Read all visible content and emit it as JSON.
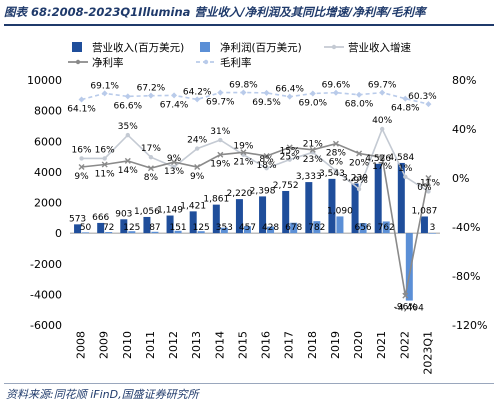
{
  "header": {
    "title": "图表 68:2008-2023Q1Illumina 营业收入/净利润及其同比增速/净利率/毛利率"
  },
  "footer": {
    "source": "资料来源:同花顺 iFinD,国盛证券研究所"
  },
  "colors": {
    "revenue": "#1f4e9b",
    "net_profit": "#5b8fd6",
    "revenue_growth": "#c4cad3",
    "net_margin": "#8a8a8a",
    "gross_margin": "#b9cbea",
    "title": "#1f3a6b"
  },
  "chart_data": {
    "type": "bar",
    "categories": [
      "2008",
      "2009",
      "2010",
      "2011",
      "2012",
      "2013",
      "2014",
      "2015",
      "2016",
      "2017",
      "2018",
      "2019",
      "2020",
      "2021",
      "2022",
      "2023Q1"
    ],
    "series": [
      {
        "name": "营业收入(百万美元)",
        "kind": "bar",
        "axis": "left",
        "values": [
          573,
          666,
          903,
          1056,
          1149,
          1421,
          1861,
          2220,
          2398,
          2752,
          3333,
          3543,
          3239,
          4526,
          4584,
          1087
        ],
        "labels": [
          "573",
          "666",
          "903",
          "1,056",
          "1,149",
          "1,421",
          "1,861",
          "2,220",
          "2,398",
          "2,752",
          "3,333",
          "3,543",
          "3,239",
          "4,526",
          "4,584",
          "1,087"
        ]
      },
      {
        "name": "净利润(百万美元)",
        "kind": "bar",
        "axis": "left",
        "values": [
          50,
          72,
          125,
          87,
          151,
          125,
          353,
          457,
          428,
          678,
          782,
          1090,
          656,
          762,
          -4404,
          3
        ],
        "labels": [
          "50",
          "72",
          "125",
          "87",
          "151",
          "125",
          "353",
          "457",
          "428",
          "678",
          "782",
          "1,090",
          "656",
          "762",
          "-4,404",
          "3"
        ]
      },
      {
        "name": "营业收入增速",
        "kind": "line",
        "axis": "right",
        "values": [
          0.16,
          0.16,
          0.35,
          0.17,
          0.09,
          0.24,
          0.31,
          0.19,
          0.08,
          0.15,
          0.21,
          0.06,
          -0.09,
          0.4,
          0.01,
          -0.11
        ],
        "labels": [
          "16%",
          "16%",
          "35%",
          "17%",
          "9%",
          "24%",
          "31%",
          "19%",
          "8%",
          "15%",
          "21%",
          "6%",
          "-9%",
          "40%",
          "1%",
          "-11%"
        ]
      },
      {
        "name": "净利率",
        "kind": "line",
        "axis": "right",
        "values": [
          0.09,
          0.11,
          0.14,
          0.08,
          0.13,
          0.09,
          0.19,
          0.21,
          0.18,
          0.25,
          0.23,
          0.28,
          0.2,
          0.17,
          -0.96,
          0.0
        ],
        "labels": [
          "9%",
          "11%",
          "14%",
          "8%",
          "13%",
          "9%",
          "19%",
          "21%",
          "18%",
          "25%",
          "23%",
          "28%",
          "20%",
          "17%",
          "-96%",
          "0%"
        ]
      },
      {
        "name": "毛利率",
        "kind": "line",
        "axis": "right",
        "values": [
          0.641,
          0.691,
          0.666,
          0.672,
          0.674,
          0.642,
          0.697,
          0.698,
          0.695,
          0.664,
          0.69,
          0.696,
          0.68,
          0.697,
          0.648,
          0.603
        ],
        "labels": [
          "64.1%",
          "69.1%",
          "66.6%",
          "67.2%",
          "67.4%",
          "64.2%",
          "69.7%",
          "69.8%",
          "69.5%",
          "66.4%",
          "69.0%",
          "69.6%",
          "68.0%",
          "69.7%",
          "64.8%",
          "60.3%"
        ]
      }
    ],
    "left_axis": {
      "min": -6000,
      "max": 10000,
      "step": 2000,
      "ticks": [
        "-6000",
        "-4000",
        "-2000",
        "0",
        "2000",
        "4000",
        "6000",
        "8000",
        "10000"
      ]
    },
    "right_axis": {
      "min": -1.2,
      "max": 0.8,
      "step": 0.4,
      "ticks": [
        "-120%",
        "-80%",
        "-40%",
        "0%",
        "40%",
        "80%"
      ]
    },
    "grid": false,
    "legend_position": "top"
  }
}
